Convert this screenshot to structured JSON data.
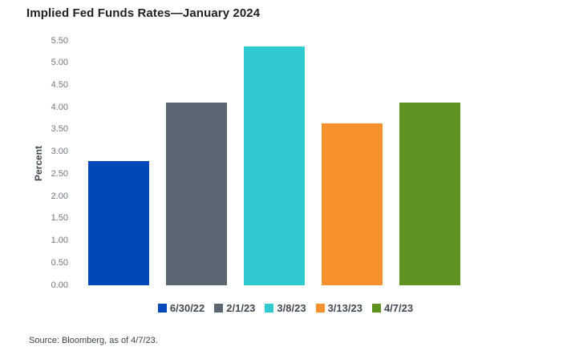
{
  "page": {
    "title": "Implied Fed Funds Rates—January 2024",
    "source_note": "Source: Bloomberg, as of 4/7/23."
  },
  "colors": {
    "title_text": "#231F20",
    "axis_tick_text": "#6E7780",
    "axis_label_text": "#3F4A55",
    "legend_text": "#3F4A55",
    "source_text": "#39434D",
    "background": "#FFFFFF"
  },
  "chart_data": {
    "type": "bar",
    "title": "Implied Fed Funds Rates—January 2024",
    "xlabel": "",
    "ylabel": "Percent",
    "categories": [
      "6/30/22",
      "2/1/23",
      "3/8/23",
      "3/13/23",
      "4/7/23"
    ],
    "values": [
      2.8,
      4.12,
      5.38,
      3.65,
      4.12
    ],
    "bar_colors": [
      "#0047BA",
      "#5A6670",
      "#2FC9D2",
      "#F6912D",
      "#609221"
    ],
    "ylim": [
      0,
      5.5
    ],
    "ytick_labels": [
      "5.50",
      "5.00",
      "4.50",
      "4.00",
      "3.50",
      "3.00",
      "2.50",
      "2.00",
      "1.50",
      "1.00",
      "0.50",
      "0.00"
    ],
    "grid": false,
    "legend_position": "bottom",
    "source": "Source: Bloomberg, as of 4/7/23."
  }
}
